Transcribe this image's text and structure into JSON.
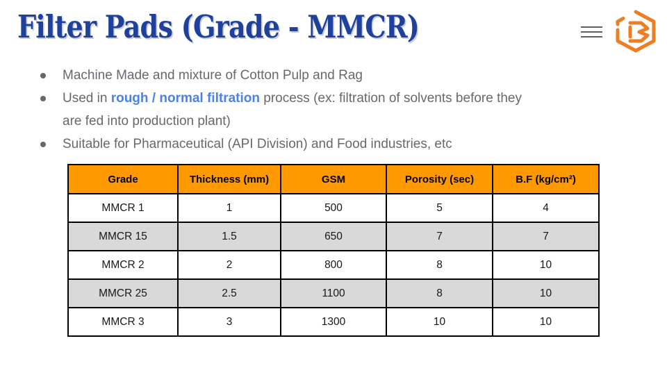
{
  "title": "Filter Pads (Grade - MMCR)",
  "top_bar": {
    "menu_icon": "hamburger-menu",
    "logo_icon": "hexagon-b-logo"
  },
  "bullets": [
    [
      {
        "t": "Machine Made and mixture of Cotton Pulp and Rag"
      }
    ],
    [
      {
        "t": "Used in "
      },
      {
        "t": "rough / normal filtration",
        "bold": true
      },
      {
        "t": " process (ex: filtration of solvents before they\nare fed into production plant)"
      }
    ],
    [
      {
        "t": "Suitable for Pharmaceutical (API Division) and Food industries, etc"
      }
    ]
  ],
  "table": {
    "headers": [
      "Grade",
      "Thickness (mm)",
      "GSM",
      "Porosity (sec)",
      "B.F (kg/cm²)"
    ],
    "rows": [
      [
        "MMCR 1",
        "1",
        "500",
        "5",
        "4"
      ],
      [
        "MMCR 15",
        "1.5",
        "650",
        "7",
        "7"
      ],
      [
        "MMCR 2",
        "2",
        "800",
        "8",
        "10"
      ],
      [
        "MMCR 25",
        "2.5",
        "1100",
        "8",
        "10"
      ],
      [
        "MMCR 3",
        "3",
        "1300",
        "10",
        "10"
      ]
    ]
  },
  "colors": {
    "title_blue": "#1f419b",
    "accent_blue": "#4a82ec",
    "body_gray": "#65696e",
    "header_orange": "#ff9900",
    "alt_row_gray": "#d9d9d9",
    "logo_orange": "#ef7d22",
    "hamburger_gray": "#5f5f5f"
  }
}
